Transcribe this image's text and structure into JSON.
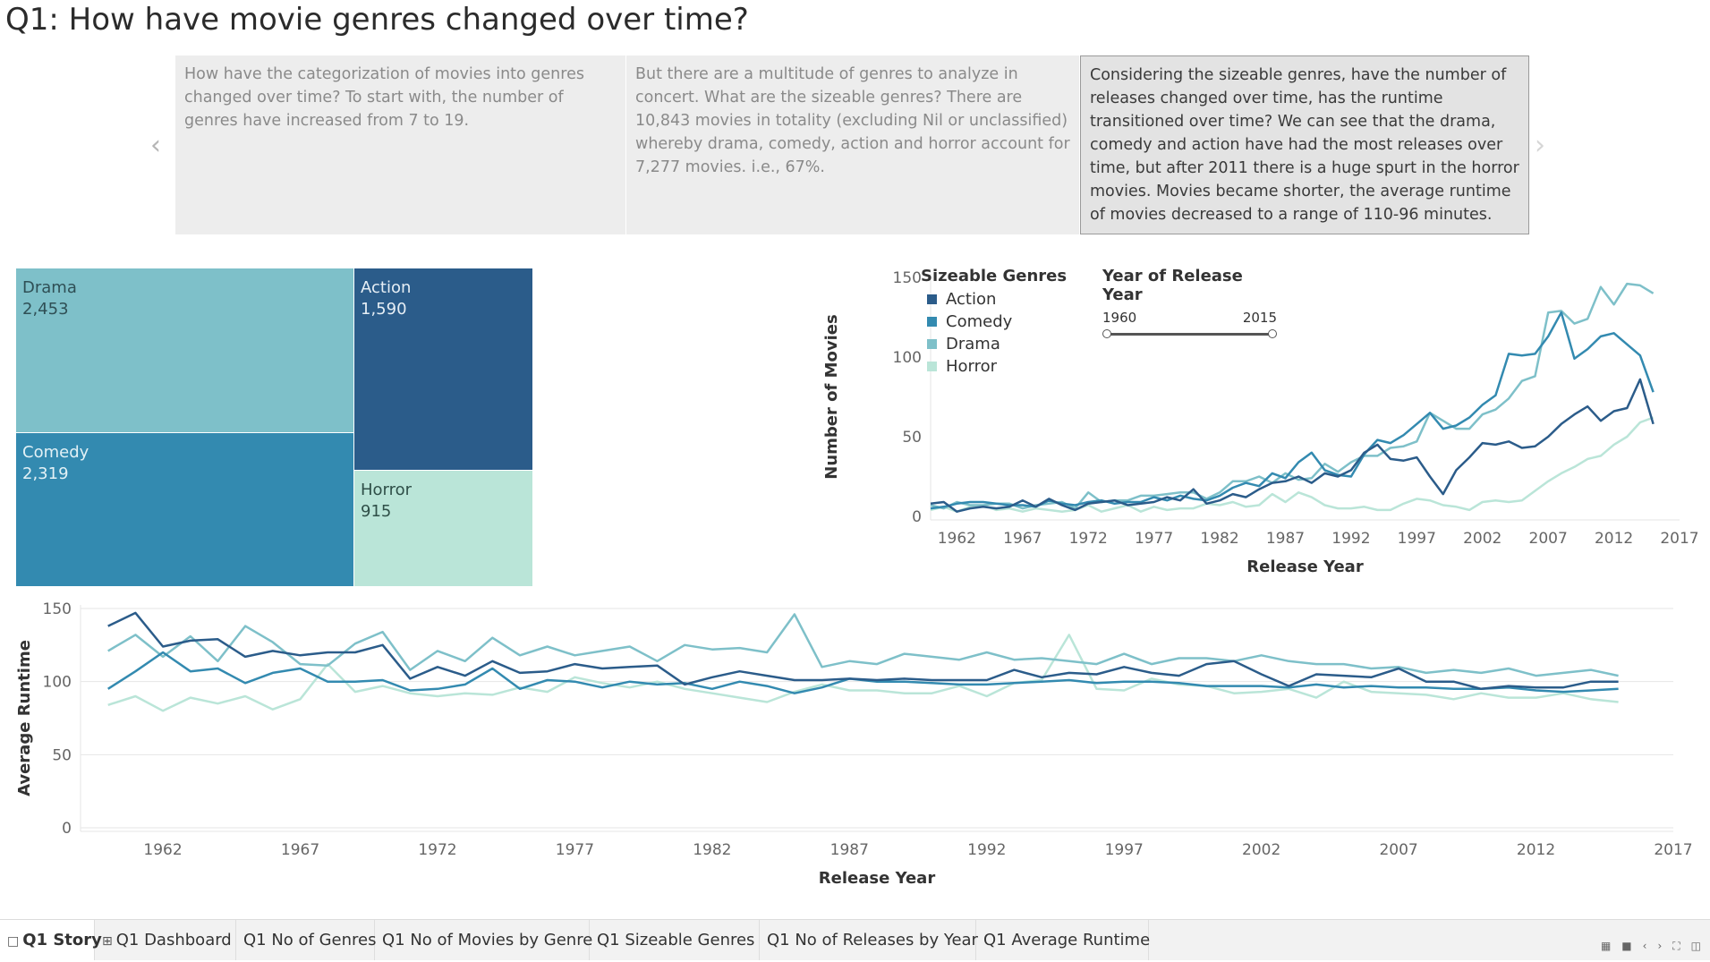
{
  "page_title": "Q1: How have movie genres changed over time?",
  "story": {
    "points": [
      "How have the categorization of movies into genres changed over time? To start with, the number of genres have increased from 7 to 19.",
      "But there are a multitude of genres to analyze in concert. What are the sizeable genres? There are 10,843 movies in totality (excluding Nil or unclassified) whereby drama, comedy, action and horror account for 7,277 movies. i.e., 67%.",
      "Considering the sizeable genres, have the number of releases changed over time, has the runtime transitioned over time? We can see that the drama, comedy and action have had the most releases over time, but after 2011 there is a huge spurt in the horror movies. Movies became shorter, the average runtime of movies decreased to a range of 110-96 minutes."
    ],
    "active_index": 2,
    "prev_icon": "chevron-left-icon",
    "next_icon": "chevron-right-icon"
  },
  "colors": {
    "Action": "#2b5c8a",
    "Comedy": "#338ab0",
    "Drama": "#7ec0c9",
    "Horror": "#bae5d8",
    "axis": "#666666",
    "grid": "#e6e6e6"
  },
  "legend": {
    "title": "Sizeable Genres",
    "items": [
      "Action",
      "Comedy",
      "Drama",
      "Horror"
    ]
  },
  "year_filter": {
    "title": "Year of Release Year",
    "min_label": "1960",
    "max_label": "2015",
    "range": [
      1960,
      2015
    ]
  },
  "treemap": {
    "tiles": [
      {
        "name": "Drama",
        "value": "2,453"
      },
      {
        "name": "Action",
        "value": "1,590"
      },
      {
        "name": "Comedy",
        "value": "2,319"
      },
      {
        "name": "Horror",
        "value": "915"
      }
    ]
  },
  "chart_data": [
    {
      "type": "treemap",
      "categories": [
        "Drama",
        "Comedy",
        "Action",
        "Horror"
      ],
      "values": [
        2453,
        2319,
        1590,
        915
      ]
    },
    {
      "type": "line",
      "xlabel": "Release Year",
      "ylabel": "Number of Movies",
      "xlim": [
        1960,
        2017
      ],
      "ylim": [
        0,
        150
      ],
      "xticks": [
        1962,
        1967,
        1972,
        1977,
        1982,
        1987,
        1992,
        1997,
        2002,
        2007,
        2012,
        2017
      ],
      "yticks": [
        0,
        50,
        100,
        150
      ],
      "grid": false,
      "legend": "top-left",
      "x": [
        1960,
        1961,
        1962,
        1963,
        1964,
        1965,
        1966,
        1967,
        1968,
        1969,
        1970,
        1971,
        1972,
        1973,
        1974,
        1975,
        1976,
        1977,
        1978,
        1979,
        1980,
        1981,
        1982,
        1983,
        1984,
        1985,
        1986,
        1987,
        1988,
        1989,
        1990,
        1991,
        1992,
        1993,
        1994,
        1995,
        1996,
        1997,
        1998,
        1999,
        2000,
        2001,
        2002,
        2003,
        2004,
        2005,
        2006,
        2007,
        2008,
        2009,
        2010,
        2011,
        2012,
        2013,
        2014,
        2015
      ],
      "series": [
        {
          "name": "Action",
          "values": [
            8,
            9,
            3,
            5,
            6,
            5,
            6,
            10,
            6,
            11,
            7,
            4,
            8,
            9,
            10,
            7,
            8,
            9,
            12,
            10,
            17,
            8,
            10,
            14,
            12,
            17,
            21,
            22,
            25,
            21,
            27,
            25,
            29,
            40,
            45,
            36,
            35,
            37,
            25,
            14,
            29,
            37,
            46,
            45,
            47,
            43,
            44,
            50,
            58,
            64,
            69,
            60,
            66,
            68,
            86,
            58
          ]
        },
        {
          "name": "Comedy",
          "values": [
            5,
            6,
            8,
            9,
            9,
            8,
            7,
            7,
            6,
            10,
            8,
            7,
            9,
            10,
            8,
            9,
            9,
            12,
            10,
            13,
            11,
            10,
            13,
            18,
            21,
            19,
            27,
            24,
            34,
            40,
            29,
            26,
            25,
            39,
            48,
            46,
            51,
            58,
            65,
            55,
            57,
            62,
            70,
            76,
            102,
            101,
            102,
            113,
            128,
            99,
            105,
            113,
            115,
            108,
            101,
            78
          ]
        },
        {
          "name": "Drama",
          "values": [
            7,
            5,
            9,
            7,
            7,
            8,
            8,
            5,
            7,
            8,
            9,
            5,
            15,
            9,
            10,
            10,
            13,
            13,
            14,
            15,
            15,
            11,
            15,
            22,
            22,
            25,
            21,
            27,
            23,
            24,
            33,
            28,
            34,
            38,
            38,
            43,
            44,
            47,
            65,
            60,
            55,
            55,
            64,
            67,
            74,
            85,
            88,
            128,
            129,
            121,
            124,
            144,
            133,
            146,
            145,
            140
          ]
        },
        {
          "name": "Horror",
          "values": [
            4,
            6,
            3,
            6,
            7,
            4,
            5,
            3,
            5,
            4,
            3,
            4,
            7,
            3,
            5,
            7,
            3,
            6,
            4,
            5,
            5,
            8,
            7,
            9,
            6,
            7,
            14,
            9,
            15,
            12,
            7,
            5,
            5,
            6,
            4,
            4,
            8,
            11,
            10,
            7,
            6,
            4,
            9,
            10,
            9,
            10,
            16,
            22,
            27,
            31,
            36,
            38,
            45,
            50,
            59,
            62
          ]
        }
      ]
    },
    {
      "type": "line",
      "xlabel": "Release Year",
      "ylabel": "Average Runtime",
      "xlim": [
        1959,
        2017
      ],
      "ylim": [
        0,
        150
      ],
      "xticks": [
        1962,
        1967,
        1972,
        1977,
        1982,
        1987,
        1992,
        1997,
        2002,
        2007,
        2012,
        2017
      ],
      "yticks": [
        0,
        50,
        100,
        150
      ],
      "grid": true,
      "x": [
        1960,
        1961,
        1962,
        1963,
        1964,
        1965,
        1966,
        1967,
        1968,
        1969,
        1970,
        1971,
        1972,
        1973,
        1974,
        1975,
        1976,
        1977,
        1978,
        1979,
        1980,
        1981,
        1982,
        1983,
        1984,
        1985,
        1986,
        1987,
        1988,
        1989,
        1990,
        1991,
        1992,
        1993,
        1994,
        1995,
        1996,
        1997,
        1998,
        1999,
        2000,
        2001,
        2002,
        2003,
        2004,
        2005,
        2006,
        2007,
        2008,
        2009,
        2010,
        2011,
        2012,
        2013,
        2014,
        2015
      ],
      "series": [
        {
          "name": "Action",
          "values": [
            138,
            147,
            124,
            128,
            129,
            117,
            121,
            118,
            120,
            120,
            125,
            102,
            110,
            104,
            114,
            106,
            107,
            112,
            109,
            110,
            111,
            98,
            103,
            107,
            104,
            101,
            101,
            102,
            101,
            102,
            101,
            101,
            101,
            108,
            103,
            106,
            105,
            110,
            106,
            104,
            112,
            114,
            105,
            97,
            105,
            104,
            103,
            109,
            100,
            100,
            95,
            97,
            96,
            96,
            100,
            100
          ]
        },
        {
          "name": "Comedy",
          "values": [
            95,
            107,
            120,
            107,
            109,
            99,
            106,
            109,
            100,
            100,
            101,
            94,
            95,
            98,
            109,
            95,
            101,
            100,
            96,
            100,
            98,
            99,
            95,
            100,
            97,
            92,
            96,
            102,
            100,
            100,
            99,
            98,
            98,
            99,
            100,
            101,
            99,
            100,
            100,
            99,
            97,
            97,
            97,
            96,
            98,
            96,
            97,
            96,
            96,
            95,
            95,
            96,
            94,
            93,
            94,
            95
          ]
        },
        {
          "name": "Drama",
          "values": [
            121,
            132,
            117,
            131,
            114,
            138,
            127,
            112,
            111,
            126,
            134,
            108,
            121,
            114,
            130,
            118,
            124,
            118,
            121,
            124,
            114,
            125,
            122,
            123,
            120,
            146,
            110,
            114,
            112,
            119,
            117,
            115,
            120,
            115,
            116,
            114,
            112,
            119,
            112,
            116,
            116,
            114,
            118,
            114,
            112,
            112,
            109,
            110,
            106,
            108,
            106,
            109,
            104,
            106,
            108,
            104
          ]
        },
        {
          "name": "Horror",
          "values": [
            84,
            90,
            80,
            89,
            85,
            90,
            81,
            88,
            112,
            93,
            97,
            92,
            90,
            92,
            91,
            96,
            93,
            103,
            99,
            96,
            100,
            95,
            92,
            89,
            86,
            93,
            98,
            94,
            94,
            92,
            92,
            97,
            90,
            99,
            101,
            132,
            95,
            94,
            102,
            98,
            97,
            92,
            93,
            95,
            89,
            100,
            93,
            92,
            91,
            88,
            92,
            89,
            89,
            92,
            88,
            86
          ]
        }
      ]
    }
  ],
  "tabs": [
    {
      "label": "Q1 Story",
      "icon": "book-icon",
      "active": true
    },
    {
      "label": "Q1 Dashboard",
      "icon": "dashboard-grid-icon"
    },
    {
      "label": "Q1 No of Genres"
    },
    {
      "label": "Q1 No of Movies by Genre"
    },
    {
      "label": "Q1 Sizeable Genres"
    },
    {
      "label": "Q1 No of Releases by Year"
    },
    {
      "label": "Q1 Average Runtime"
    }
  ],
  "toolbar": {
    "icons": [
      "grid-view-icon",
      "stop-icon",
      "prev-icon",
      "next-icon",
      "fullscreen-icon",
      "present-icon"
    ]
  }
}
